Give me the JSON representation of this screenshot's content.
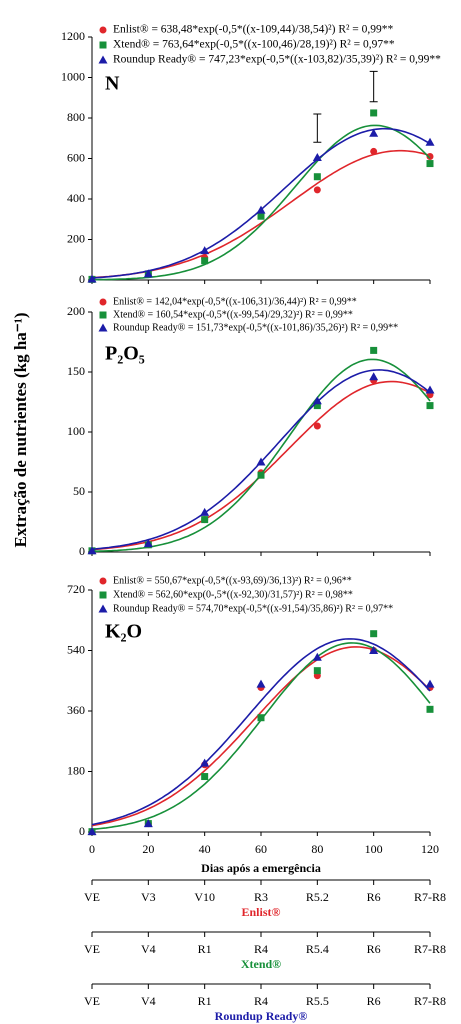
{
  "chart_data": {
    "type": "scatter",
    "ylabel": "Extração de nutrientes (kg ha⁻¹)",
    "xlabel": "Dias após a emergência",
    "x": [
      0,
      20,
      40,
      60,
      80,
      100,
      120
    ],
    "xlim": [
      0,
      120
    ],
    "xticks": [
      0,
      20,
      40,
      60,
      80,
      100,
      120
    ],
    "panels": [
      {
        "label": "N",
        "ylim": [
          0,
          1200
        ],
        "yticks": [
          0,
          200,
          400,
          600,
          800,
          1000,
          1200
        ],
        "error_bars": [
          {
            "x": 80,
            "center": 750,
            "error": 70
          },
          {
            "x": 100,
            "center": 955,
            "error": 75
          }
        ],
        "series": [
          {
            "name": "Enlist®",
            "color": "#e0262b",
            "marker": "circle",
            "values": [
              5,
              30,
              110,
              320,
              445,
              635,
              610
            ],
            "fit": {
              "label": "Enlist® = 638,48*exp(-0,5*((x-109,44)/38,54)²) R² = 0,99**",
              "a": 638.48,
              "x0": 109.44,
              "b": 38.54
            }
          },
          {
            "name": "Xtend®",
            "color": "#17903a",
            "marker": "square",
            "values": [
              3,
              30,
              95,
              315,
              510,
              825,
              575
            ],
            "fit": {
              "label": "Xtend® = 763,64*exp(-0,5*((x-100,46)/28,19)²) R² = 0,97**",
              "a": 763.64,
              "x0": 100.46,
              "b": 28.19
            }
          },
          {
            "name": "Roundup Ready®",
            "color": "#1c1ca8",
            "marker": "triangle",
            "values": [
              5,
              30,
              145,
              345,
              605,
              725,
              680
            ],
            "fit": {
              "label": "Roundup Ready® = 747,23*exp(-0,5*((x-103,82)/35,39)²) R² = 0,99**",
              "a": 747.23,
              "x0": 103.82,
              "b": 35.39
            }
          }
        ]
      },
      {
        "label": "P₂O₅",
        "ylim": [
          0,
          200
        ],
        "yticks": [
          0,
          50,
          100,
          150,
          200
        ],
        "series": [
          {
            "name": "Enlist®",
            "color": "#e0262b",
            "marker": "circle",
            "values": [
              1,
              6,
              27,
              66,
              105,
              143,
              131
            ],
            "fit": {
              "label": "Enlist® = 142,04*exp(-0,5*((x-106,31)/36,44)²) R² = 0,99**",
              "a": 142.04,
              "x0": 106.31,
              "b": 36.44
            }
          },
          {
            "name": "Xtend®",
            "color": "#17903a",
            "marker": "square",
            "values": [
              1,
              6,
              27,
              64,
              122,
              168,
              122
            ],
            "fit": {
              "label": "Xtend® = 160,54*exp(-0,5*((x-99,54)/29,32)²) R² = 0,99**",
              "a": 160.54,
              "x0": 99.54,
              "b": 29.32
            }
          },
          {
            "name": "Roundup Ready®",
            "color": "#1c1ca8",
            "marker": "triangle",
            "values": [
              1,
              7,
              33,
              75,
              126,
              146,
              135
            ],
            "fit": {
              "label": "Roundup Ready® = 151,73*exp(-0,5*((x-101,86)/35,26)²) R² = 0,99**",
              "a": 151.73,
              "x0": 101.86,
              "b": 35.26
            }
          }
        ]
      },
      {
        "label": "K₂O",
        "ylim": [
          0,
          720
        ],
        "yticks": [
          0,
          180,
          360,
          540,
          720
        ],
        "series": [
          {
            "name": "Enlist®",
            "color": "#e0262b",
            "marker": "circle",
            "values": [
              1,
              25,
              200,
              430,
              465,
              540,
              430
            ],
            "fit": {
              "label": "Enlist® = 550,67*exp(-0,5*((x-93,69)/36,13)²) R² = 0,96**",
              "a": 550.67,
              "x0": 93.69,
              "b": 36.13
            }
          },
          {
            "name": "Xtend®",
            "color": "#17903a",
            "marker": "square",
            "values": [
              1,
              25,
              165,
              340,
              480,
              590,
              365
            ],
            "fit": {
              "label": "Xtend® = 562,60*exp(0-,5*((x-92,30)/31,57)²) R² = 0,98**",
              "a": 562.6,
              "x0": 92.3,
              "b": 31.57
            }
          },
          {
            "name": "Roundup Ready®",
            "color": "#1c1ca8",
            "marker": "triangle",
            "values": [
              1,
              25,
              205,
              440,
              520,
              540,
              440
            ],
            "fit": {
              "label": "Roundup Ready® = 574,70*exp(-0,5*((x-91,54)/35,86)²) R² = 0,97**",
              "a": 574.7,
              "x0": 91.54,
              "b": 35.86
            }
          }
        ]
      }
    ],
    "stages": [
      {
        "name": "Enlist®",
        "color": "#e0262b",
        "labels": [
          "VE",
          "V3",
          "V10",
          "R3",
          "R5.2",
          "R6",
          "R7-R8"
        ]
      },
      {
        "name": "Xtend®",
        "color": "#17903a",
        "labels": [
          "VE",
          "V4",
          "R1",
          "R4",
          "R5.4",
          "R6",
          "R7-R8"
        ]
      },
      {
        "name": "Roundup Ready®",
        "color": "#1c1ca8",
        "labels": [
          "VE",
          "V4",
          "R1",
          "R4",
          "R5.5",
          "R6",
          "R7-R8"
        ]
      }
    ]
  }
}
